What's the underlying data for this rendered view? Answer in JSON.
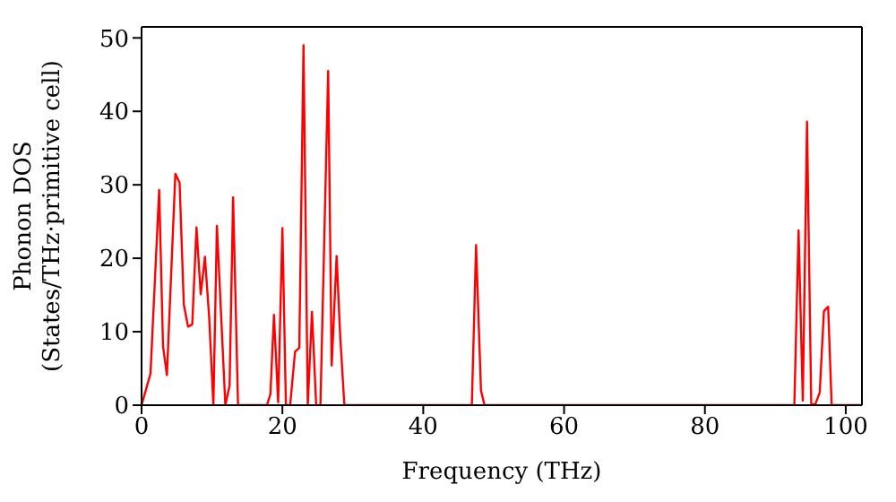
{
  "chart_data": {
    "type": "line",
    "xlabel": "Frequency (THz)",
    "ylabel": "Phonon DOS\n(States/THz·primitive cell)",
    "xlim": [
      0,
      102.3
    ],
    "ylim": [
      0,
      51.5
    ],
    "xticks": [
      0,
      20,
      40,
      60,
      80,
      100
    ],
    "yticks": [
      0,
      10,
      20,
      30,
      40,
      50
    ],
    "marker": "none",
    "line_style": "solid",
    "series": [
      {
        "color": "#ff0000",
        "x": [
          0,
          1.27,
          2.5,
          3.05,
          3.6,
          4.8,
          5.4,
          6.0,
          6.6,
          7.2,
          7.8,
          8.4,
          9.0,
          9.6,
          10.2,
          10.7,
          11.9,
          12.5,
          13.0,
          13.7,
          17.8,
          18.3,
          18.8,
          19.4,
          20.0,
          20.5,
          21.1,
          21.8,
          22.4,
          23.0,
          23.6,
          24.2,
          24.8,
          25.4,
          26.5,
          27.0,
          27.7,
          28.2,
          28.8,
          46.9,
          47.5,
          48.2,
          48.7,
          92.7,
          93.3,
          93.9,
          94.5,
          95.1,
          95.7,
          96.3,
          96.9,
          97.5,
          98.0,
          102.3
        ],
        "values": [
          0,
          4.3,
          29.3,
          8,
          4.1,
          31.5,
          30.3,
          13.7,
          10.7,
          11,
          24.2,
          15.1,
          20.2,
          12,
          0,
          24.4,
          0,
          2.7,
          28.3,
          0,
          0,
          1.5,
          12.3,
          0.4,
          24.1,
          0,
          0,
          7.3,
          7.8,
          49,
          0,
          12.7,
          0,
          0,
          45.5,
          5.4,
          20.3,
          9.6,
          0,
          0,
          21.8,
          2,
          0,
          0,
          23.8,
          0.6,
          38.6,
          0,
          0.2,
          1.7,
          12.8,
          13.4,
          0,
          0
        ]
      }
    ]
  }
}
